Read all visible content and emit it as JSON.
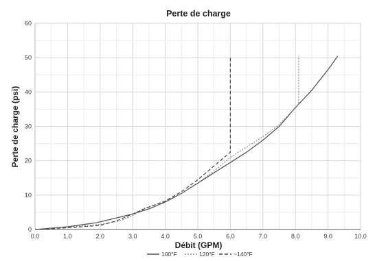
{
  "chart_data": {
    "type": "line",
    "title": "Perte de charge",
    "xlabel": "Débit (GPM)",
    "ylabel": "Perte de charge (psi)",
    "xlim": [
      0,
      10
    ],
    "ylim": [
      0,
      60
    ],
    "x_ticks": [
      "0.0",
      "1.0",
      "2.0",
      "3.0",
      "4.0",
      "5.0",
      "6.0",
      "7.0",
      "8.0",
      "9.0",
      "10.0"
    ],
    "y_ticks": [
      "0",
      "10",
      "20",
      "30",
      "40",
      "50",
      "60"
    ],
    "grid": true,
    "legend_position": "bottom",
    "series": [
      {
        "name": "100°F",
        "style": "solid",
        "color": "#555555",
        "points": [
          [
            0,
            0
          ],
          [
            1,
            0.8
          ],
          [
            1.9,
            2
          ],
          [
            3,
            4.5
          ],
          [
            3.5,
            6
          ],
          [
            4,
            8
          ],
          [
            4.5,
            10.5
          ],
          [
            5,
            13.5
          ],
          [
            5.5,
            16.5
          ],
          [
            6,
            19.5
          ],
          [
            6.5,
            22.5
          ],
          [
            7,
            26
          ],
          [
            7.5,
            30
          ],
          [
            8,
            35.5
          ],
          [
            8.5,
            40.5
          ],
          [
            9,
            46.5
          ],
          [
            9.3,
            50.5
          ]
        ]
      },
      {
        "name": "120°F",
        "style": "dotted",
        "color": "#777777",
        "points": [
          [
            0,
            0
          ],
          [
            1,
            0.7
          ],
          [
            2,
            1.5
          ],
          [
            2.6,
            2.5
          ],
          [
            3,
            4
          ],
          [
            3.3,
            6
          ],
          [
            4,
            8.2
          ],
          [
            4.5,
            10.5
          ],
          [
            5,
            13.5
          ],
          [
            5.5,
            17
          ],
          [
            6,
            21
          ],
          [
            6.5,
            24
          ],
          [
            7,
            27
          ],
          [
            7.5,
            30.5
          ],
          [
            8,
            35.5
          ],
          [
            8.1,
            36.5
          ],
          [
            8.1,
            50.5
          ]
        ]
      },
      {
        "name": "~140°F",
        "style": "dashed",
        "color": "#444444",
        "points": [
          [
            0,
            0
          ],
          [
            1,
            0.5
          ],
          [
            2,
            1.2
          ],
          [
            2.5,
            2.5
          ],
          [
            3,
            4.5
          ],
          [
            3.4,
            6.2
          ],
          [
            4,
            8.3
          ],
          [
            4.5,
            11
          ],
          [
            5,
            14.5
          ],
          [
            5.5,
            18.5
          ],
          [
            6,
            22.5
          ],
          [
            6,
            50.5
          ]
        ]
      }
    ]
  }
}
